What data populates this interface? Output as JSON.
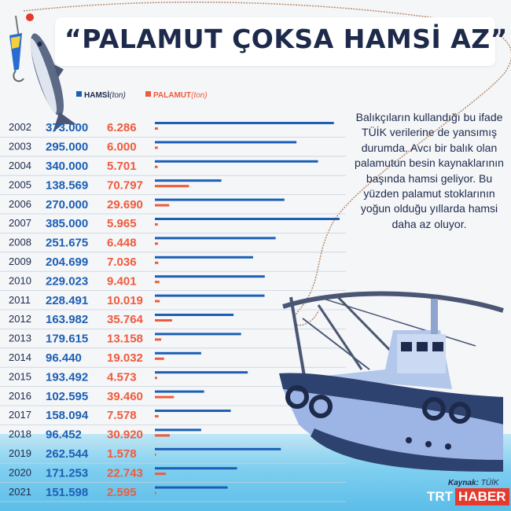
{
  "title": "“PALAMUT ÇOKSA HAMSİ AZ”",
  "legend": {
    "hamsi": "HAMSİ",
    "palamut": "PALAMUT",
    "unit": "(ton)"
  },
  "description": "Balıkçıların kullandığı bu ifade TÜİK verilerine de yansımış durumda. Avcı bir balık olan palamutun besin kaynaklarının başında hamsi geliyor. Bu yüzden palamut stoklarının yoğun olduğu yıllarda hamsi daha az oluyor.",
  "source": {
    "label": "Kaynak:",
    "value": "TÜİK"
  },
  "logo": {
    "part1": "TRT",
    "part2": "HABER"
  },
  "colors": {
    "hamsi": "#1c5fb5",
    "palamut": "#f05a3c",
    "navy": "#1e2a4c"
  },
  "chart_data": {
    "type": "bar",
    "title": "“PALAMUT ÇOKSA HAMSİ AZ”",
    "categories": [
      "2002",
      "2003",
      "2004",
      "2005",
      "2006",
      "2007",
      "2008",
      "2009",
      "2010",
      "2011",
      "2012",
      "2013",
      "2014",
      "2015",
      "2016",
      "2017",
      "2018",
      "2019",
      "2020",
      "2021"
    ],
    "series": [
      {
        "name": "HAMSİ",
        "values": [
          373000,
          295000,
          340000,
          138569,
          270000,
          385000,
          251675,
          204699,
          229023,
          228491,
          163982,
          179615,
          96440,
          193492,
          102595,
          158094,
          96452,
          262544,
          171253,
          151598
        ]
      },
      {
        "name": "PALAMUT",
        "values": [
          6286,
          6000,
          5701,
          70797,
          29690,
          5965,
          6448,
          7036,
          9401,
          10019,
          35764,
          13158,
          19032,
          4573,
          39460,
          7578,
          30920,
          1578,
          22743,
          2595
        ]
      }
    ],
    "value_labels": {
      "hamsi": [
        "373.000",
        "295.000",
        "340.000",
        "138.569",
        "270.000",
        "385.000",
        "251.675",
        "204.699",
        "229.023",
        "228.491",
        "163.982",
        "179.615",
        "96.440",
        "193.492",
        "102.595",
        "158.094",
        "96.452",
        "262.544",
        "171.253",
        "151.598"
      ],
      "palamut": [
        "6.286",
        "6.000",
        "5.701",
        "70.797",
        "29.690",
        "5.965",
        "6.448",
        "7.036",
        "9.401",
        "10.019",
        "35.764",
        "13.158",
        "19.032",
        "4.573",
        "39.460",
        "7.578",
        "30.920",
        "1.578",
        "22.743",
        "2.595"
      ]
    },
    "orientation": "horizontal",
    "xlabel": "",
    "ylabel": ""
  }
}
